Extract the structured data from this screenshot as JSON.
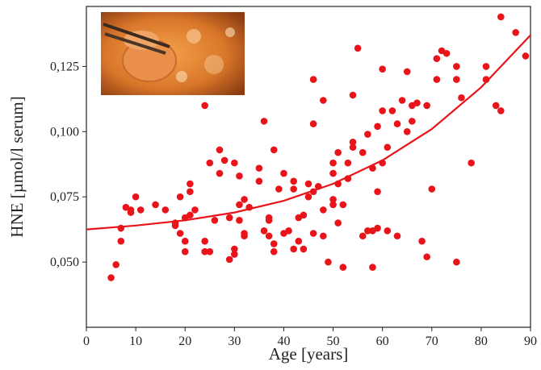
{
  "chart_data": {
    "type": "scatter",
    "xlabel": "Age [years]",
    "ylabel": "HNE [µmol/l serum]",
    "color": "#e8141a",
    "xlim": [
      0,
      90
    ],
    "xticks": [
      0,
      10,
      20,
      30,
      40,
      50,
      60,
      70,
      80,
      90
    ],
    "ylim": [
      0.025,
      0.148
    ],
    "yticks": [
      {
        "value": 0.05,
        "label": "0,050"
      },
      {
        "value": 0.075,
        "label": "0,075"
      },
      {
        "value": 0.1,
        "label": "0,100"
      },
      {
        "value": 0.125,
        "label": "0,125"
      }
    ],
    "x": [
      5,
      6,
      7,
      7,
      8,
      9,
      9,
      10,
      11,
      14,
      16,
      18,
      18,
      19,
      19,
      20,
      20,
      20,
      21,
      21,
      21,
      22,
      24,
      24,
      24,
      25,
      25,
      26,
      27,
      27,
      28,
      29,
      29,
      30,
      30,
      30,
      31,
      31,
      31,
      32,
      32,
      32,
      33,
      35,
      35,
      36,
      36,
      37,
      37,
      37,
      38,
      38,
      38,
      39,
      40,
      40,
      41,
      42,
      42,
      42,
      43,
      43,
      44,
      44,
      45,
      45,
      46,
      46,
      46,
      46,
      47,
      48,
      48,
      48,
      49,
      50,
      50,
      50,
      50,
      51,
      51,
      51,
      52,
      52,
      53,
      53,
      54,
      54,
      54,
      55,
      56,
      56,
      57,
      57,
      58,
      58,
      58,
      59,
      59,
      59,
      60,
      60,
      60,
      61,
      61,
      62,
      63,
      63,
      64,
      65,
      65,
      66,
      66,
      67,
      68,
      69,
      69,
      70,
      71,
      71,
      72,
      73,
      75,
      75,
      75,
      76,
      78,
      81,
      81,
      83,
      84,
      84,
      87,
      89
    ],
    "values": [
      0.044,
      0.049,
      0.058,
      0.063,
      0.071,
      0.07,
      0.069,
      0.075,
      0.07,
      0.072,
      0.07,
      0.065,
      0.064,
      0.061,
      0.075,
      0.058,
      0.054,
      0.067,
      0.068,
      0.077,
      0.08,
      0.07,
      0.11,
      0.058,
      0.054,
      0.054,
      0.088,
      0.066,
      0.084,
      0.093,
      0.089,
      0.067,
      0.051,
      0.055,
      0.053,
      0.088,
      0.072,
      0.083,
      0.066,
      0.074,
      0.061,
      0.06,
      0.071,
      0.086,
      0.081,
      0.104,
      0.062,
      0.067,
      0.066,
      0.06,
      0.093,
      0.057,
      0.054,
      0.078,
      0.084,
      0.061,
      0.062,
      0.081,
      0.078,
      0.055,
      0.067,
      0.058,
      0.068,
      0.055,
      0.08,
      0.075,
      0.12,
      0.103,
      0.077,
      0.061,
      0.079,
      0.112,
      0.07,
      0.06,
      0.05,
      0.088,
      0.084,
      0.074,
      0.072,
      0.092,
      0.08,
      0.065,
      0.048,
      0.072,
      0.088,
      0.082,
      0.114,
      0.096,
      0.094,
      0.132,
      0.06,
      0.092,
      0.099,
      0.062,
      0.048,
      0.062,
      0.086,
      0.102,
      0.077,
      0.063,
      0.124,
      0.108,
      0.088,
      0.094,
      0.062,
      0.108,
      0.103,
      0.06,
      0.112,
      0.123,
      0.1,
      0.11,
      0.104,
      0.111,
      0.058,
      0.11,
      0.052,
      0.078,
      0.12,
      0.128,
      0.131,
      0.13,
      0.125,
      0.12,
      0.05,
      0.113,
      0.088,
      0.125,
      0.12,
      0.11,
      0.108,
      0.144,
      0.138,
      0.129
    ],
    "fit": {
      "type": "line",
      "color": "#e8141a",
      "x": [
        0,
        10,
        20,
        30,
        40,
        50,
        60,
        70,
        80,
        90
      ],
      "values": [
        0.0625,
        0.064,
        0.066,
        0.069,
        0.0735,
        0.08,
        0.089,
        0.101,
        0.117,
        0.137
      ]
    }
  }
}
